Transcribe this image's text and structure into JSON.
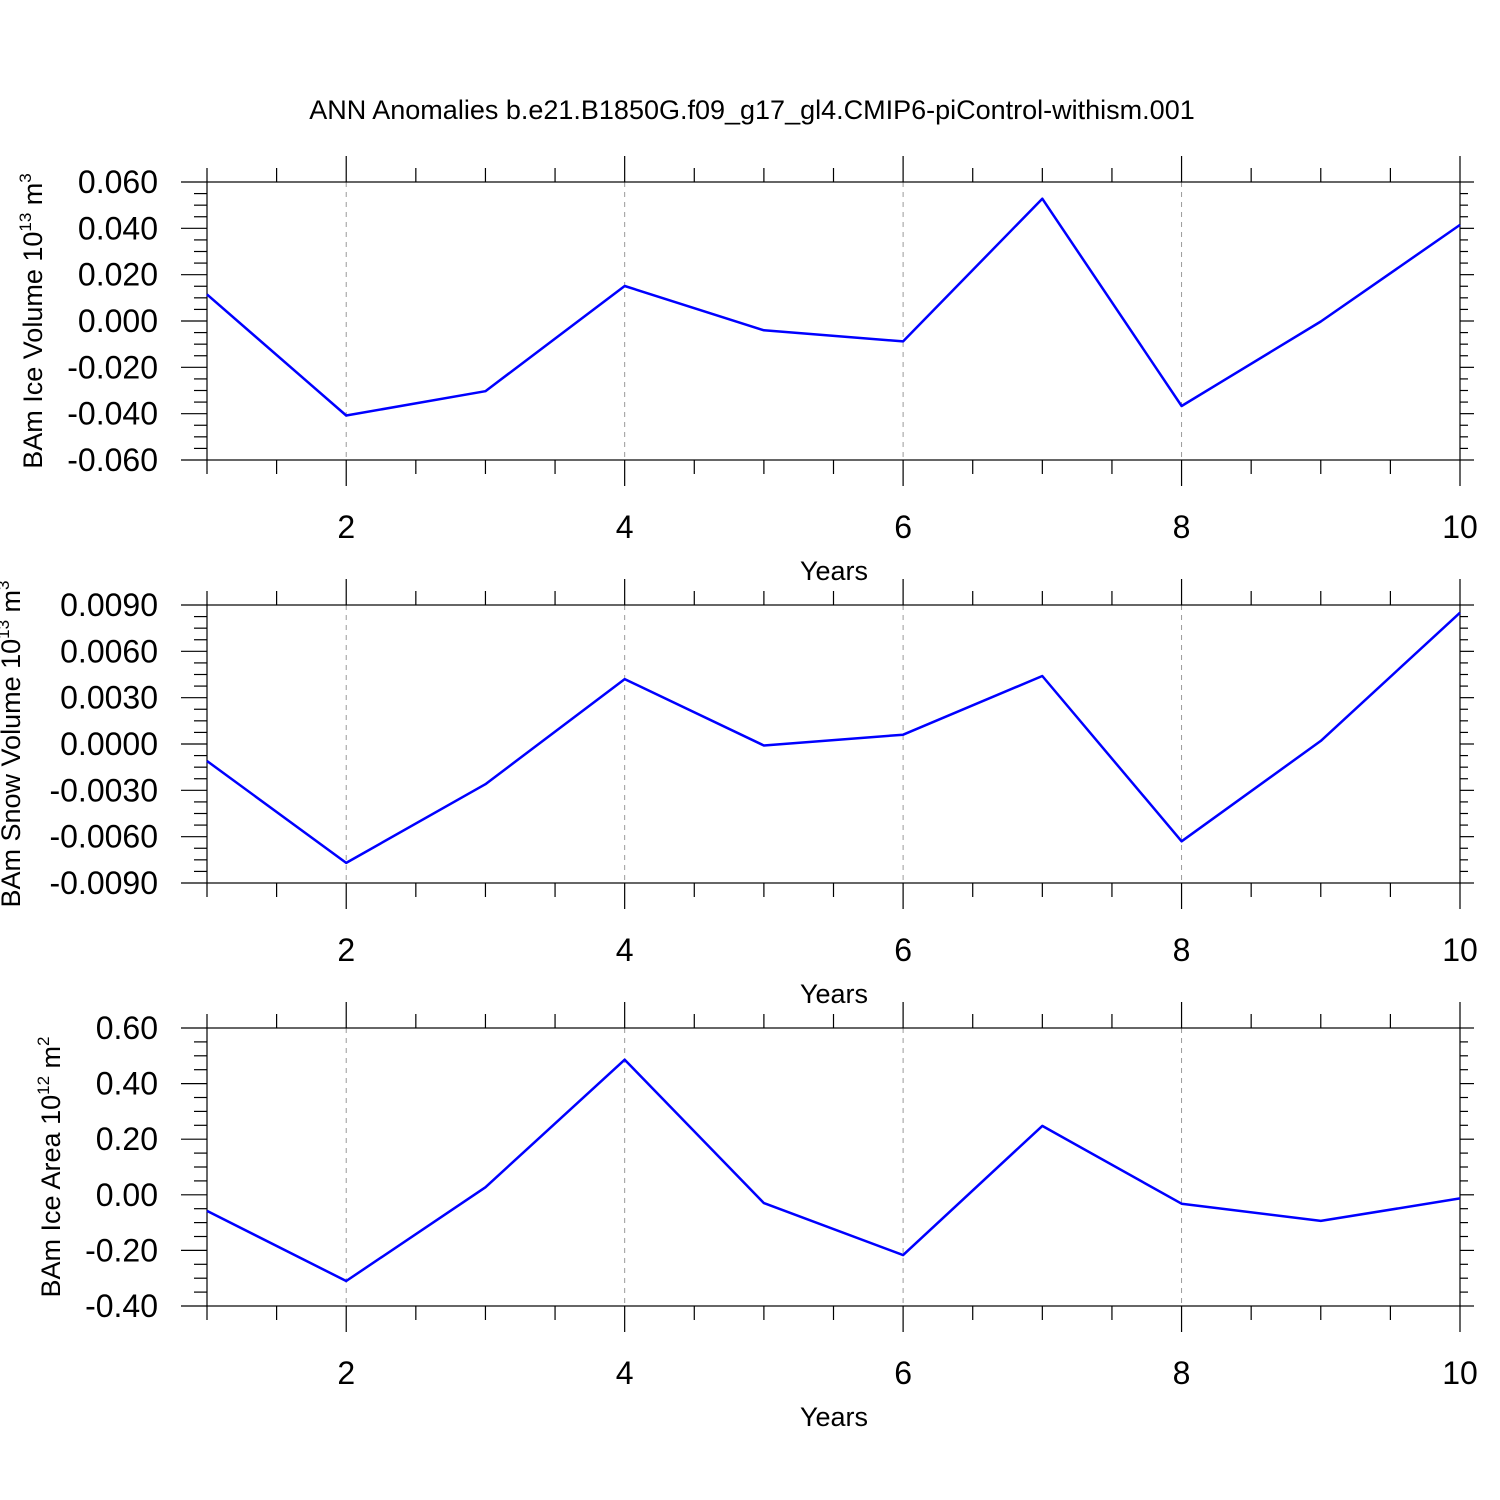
{
  "title": "ANN Anomalies b.e21.B1850G.f09_g17_gl4.CMIP6-piControl-withism.001",
  "colors": {
    "line": "#0000ff",
    "grid": "#9a9a9a",
    "axes": "#000000"
  },
  "chart_data": [
    {
      "type": "line",
      "xlabel": "Years",
      "ylabel": {
        "text": "BAm Ice Volume 10",
        "sup": "13",
        "unit": " m",
        "unit_sup": "3"
      },
      "xlim": [
        1,
        10
      ],
      "ylim": [
        -0.06,
        0.06
      ],
      "xticks": [
        2,
        4,
        6,
        8,
        10
      ],
      "xtick_labels": [
        "2",
        "4",
        "6",
        "8",
        "10"
      ],
      "yticks": [
        -0.06,
        -0.04,
        -0.02,
        0.0,
        0.02,
        0.04,
        0.06
      ],
      "ytick_labels": [
        "-0.060",
        "-0.040",
        "-0.020",
        "0.000",
        "0.020",
        "0.040",
        "0.060"
      ],
      "grid": "vertical dashed at major x ticks",
      "x": [
        1,
        2,
        3,
        4,
        5,
        6,
        7,
        8,
        9,
        10
      ],
      "values": [
        0.0115,
        -0.0408,
        -0.0303,
        0.0151,
        -0.004,
        -0.0088,
        0.0528,
        -0.0367,
        -0.0002,
        0.0415
      ]
    },
    {
      "type": "line",
      "xlabel": "Years",
      "ylabel": {
        "text": "BAm Snow Volume 10",
        "sup": "13",
        "unit": " m",
        "unit_sup": "3"
      },
      "xlim": [
        1,
        10
      ],
      "ylim": [
        -0.009,
        0.009
      ],
      "xticks": [
        2,
        4,
        6,
        8,
        10
      ],
      "xtick_labels": [
        "2",
        "4",
        "6",
        "8",
        "10"
      ],
      "yticks": [
        -0.009,
        -0.006,
        -0.003,
        0.0,
        0.003,
        0.006,
        0.009
      ],
      "ytick_labels": [
        "-0.0090",
        "-0.0060",
        "-0.0030",
        "0.0000",
        "0.0030",
        "0.0060",
        "0.0090"
      ],
      "grid": "vertical dashed at major x ticks",
      "x": [
        1,
        2,
        3,
        4,
        5,
        6,
        7,
        8,
        9,
        10
      ],
      "values": [
        -0.0011,
        -0.0077,
        -0.0026,
        0.0042,
        -0.0001,
        0.0006,
        0.0044,
        -0.0063,
        0.0002,
        0.0085
      ]
    },
    {
      "type": "line",
      "xlabel": "Years",
      "ylabel": {
        "text": "BAm Ice Area 10",
        "sup": "12",
        "unit": " m",
        "unit_sup": "2"
      },
      "xlim": [
        1,
        10
      ],
      "ylim": [
        -0.4,
        0.6
      ],
      "xticks": [
        2,
        4,
        6,
        8,
        10
      ],
      "xtick_labels": [
        "2",
        "4",
        "6",
        "8",
        "10"
      ],
      "yticks": [
        -0.4,
        -0.2,
        0.0,
        0.2,
        0.4,
        0.6
      ],
      "ytick_labels": [
        "-0.40",
        "-0.20",
        "0.00",
        "0.20",
        "0.40",
        "0.60"
      ],
      "grid": "vertical dashed at major x ticks",
      "x": [
        1,
        2,
        3,
        4,
        5,
        6,
        7,
        8,
        9,
        10
      ],
      "values": [
        -0.058,
        -0.31,
        0.027,
        0.486,
        -0.03,
        -0.217,
        0.248,
        -0.032,
        -0.094,
        -0.013
      ]
    }
  ]
}
